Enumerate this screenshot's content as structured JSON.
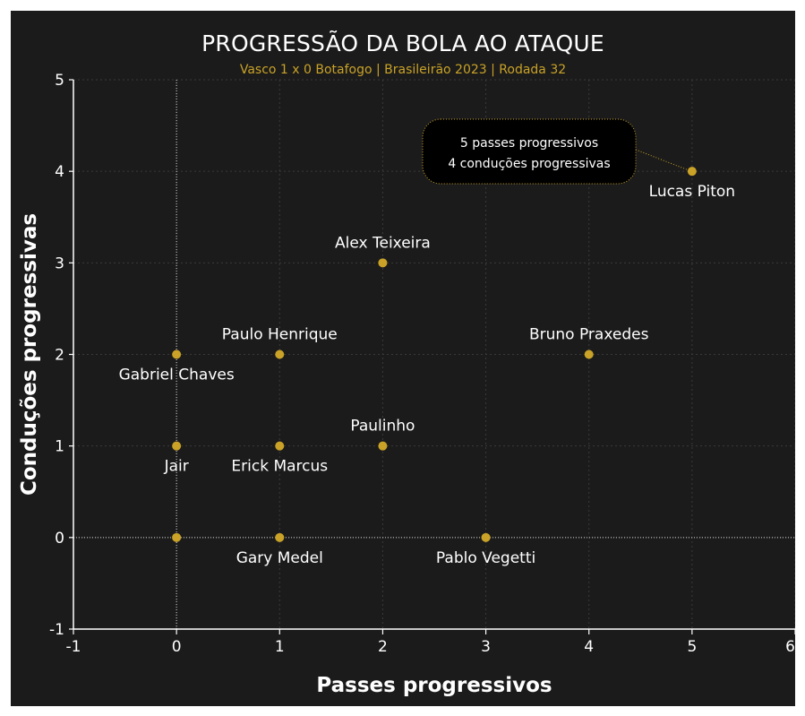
{
  "title": "PROGRESSÃO DA BOLA AO ATAQUE",
  "subtitle": "Vasco 1 x 0 Botafogo | Brasileirão 2023 | Rodada 32",
  "colors": {
    "background": "#1b1b1b",
    "point": "#c9a227",
    "text": "#ffffff",
    "subtitle": "#c9a227",
    "grid": "#3a3a3a",
    "annotation_bg": "#000000",
    "annotation_border": "#c9a227"
  },
  "chart_data": {
    "type": "scatter",
    "title": "PROGRESSÃO DA BOLA AO ATAQUE",
    "subtitle": "Vasco 1 x 0 Botafogo | Brasileirão 2023 | Rodada 32",
    "xlabel": "Passes progressivos",
    "ylabel": "Conduções progressivas",
    "xlim": [
      -1,
      6
    ],
    "ylim": [
      -1,
      5
    ],
    "xticks": [
      "-1",
      "0",
      "1",
      "2",
      "3",
      "4",
      "5",
      "6"
    ],
    "yticks": [
      "-1",
      "0",
      "1",
      "2",
      "3",
      "4",
      "5"
    ],
    "grid": true,
    "points": [
      {
        "name": "Lucas Piton",
        "x": 5,
        "y": 4,
        "label_pos": "below"
      },
      {
        "name": "Alex Teixeira",
        "x": 2,
        "y": 3,
        "label_pos": "above"
      },
      {
        "name": "Paulo Henrique",
        "x": 1,
        "y": 2,
        "label_pos": "above"
      },
      {
        "name": "Bruno Praxedes",
        "x": 4,
        "y": 2,
        "label_pos": "above"
      },
      {
        "name": "Gabriel Chaves",
        "x": 0,
        "y": 2,
        "label_pos": "below"
      },
      {
        "name": "Paulinho",
        "x": 2,
        "y": 1,
        "label_pos": "above"
      },
      {
        "name": "Jair",
        "x": 0,
        "y": 1,
        "label_pos": "below"
      },
      {
        "name": "Erick Marcus",
        "x": 1,
        "y": 1,
        "label_pos": "below"
      },
      {
        "name": "Gary Medel",
        "x": 1,
        "y": 0,
        "label_pos": "below"
      },
      {
        "name": "Pablo Vegetti",
        "x": 3,
        "y": 0,
        "label_pos": "below"
      },
      {
        "name": "",
        "x": 0,
        "y": 0,
        "label_pos": "none"
      }
    ],
    "annotation": {
      "target": "Lucas Piton",
      "lines": [
        "5 passes progressivos",
        "4 conduções progressivas"
      ]
    }
  }
}
